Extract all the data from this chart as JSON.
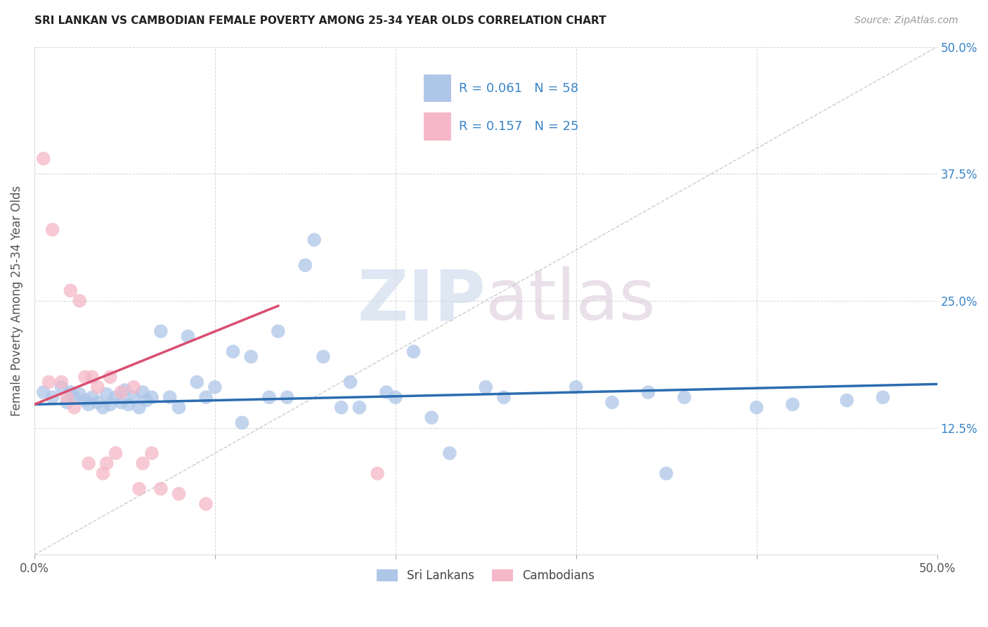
{
  "title": "SRI LANKAN VS CAMBODIAN FEMALE POVERTY AMONG 25-34 YEAR OLDS CORRELATION CHART",
  "source": "Source: ZipAtlas.com",
  "ylabel": "Female Poverty Among 25-34 Year Olds",
  "xlim": [
    0.0,
    0.5
  ],
  "ylim": [
    0.0,
    0.5
  ],
  "sri_lanka_R": 0.061,
  "sri_lanka_N": 58,
  "cambodia_R": 0.157,
  "cambodia_N": 25,
  "sri_lanka_color": "#aec6e8",
  "cambodia_color": "#f4b8c8",
  "sri_lanka_line_color": "#2b6cb0",
  "cambodia_line_color": "#d94f70",
  "diagonal_color": "#cccccc",
  "right_label_color": "#3a85c8",
  "watermark_zip_color": "#c8d8ea",
  "watermark_atlas_color": "#d8c8d8",
  "sri_lanka_x": [
    0.005,
    0.01,
    0.015,
    0.018,
    0.02,
    0.022,
    0.025,
    0.028,
    0.03,
    0.032,
    0.035,
    0.038,
    0.04,
    0.042,
    0.045,
    0.048,
    0.05,
    0.052,
    0.055,
    0.058,
    0.06,
    0.062,
    0.065,
    0.07,
    0.075,
    0.08,
    0.085,
    0.09,
    0.095,
    0.1,
    0.11,
    0.115,
    0.12,
    0.13,
    0.135,
    0.14,
    0.15,
    0.155,
    0.16,
    0.17,
    0.175,
    0.18,
    0.195,
    0.2,
    0.21,
    0.22,
    0.23,
    0.25,
    0.26,
    0.3,
    0.32,
    0.34,
    0.35,
    0.36,
    0.4,
    0.42,
    0.45,
    0.47
  ],
  "sri_lanka_y": [
    0.16,
    0.155,
    0.165,
    0.15,
    0.16,
    0.155,
    0.158,
    0.152,
    0.148,
    0.155,
    0.15,
    0.145,
    0.158,
    0.148,
    0.155,
    0.15,
    0.162,
    0.148,
    0.155,
    0.145,
    0.16,
    0.152,
    0.155,
    0.22,
    0.155,
    0.145,
    0.215,
    0.17,
    0.155,
    0.165,
    0.2,
    0.13,
    0.195,
    0.155,
    0.22,
    0.155,
    0.285,
    0.31,
    0.195,
    0.145,
    0.17,
    0.145,
    0.16,
    0.155,
    0.2,
    0.135,
    0.1,
    0.165,
    0.155,
    0.165,
    0.15,
    0.16,
    0.08,
    0.155,
    0.145,
    0.148,
    0.152,
    0.155
  ],
  "cambodia_x": [
    0.005,
    0.008,
    0.01,
    0.015,
    0.018,
    0.02,
    0.022,
    0.025,
    0.028,
    0.03,
    0.032,
    0.035,
    0.038,
    0.04,
    0.042,
    0.045,
    0.048,
    0.055,
    0.058,
    0.06,
    0.065,
    0.07,
    0.08,
    0.095,
    0.19
  ],
  "cambodia_y": [
    0.39,
    0.17,
    0.32,
    0.17,
    0.155,
    0.26,
    0.145,
    0.25,
    0.175,
    0.09,
    0.175,
    0.165,
    0.08,
    0.09,
    0.175,
    0.1,
    0.16,
    0.165,
    0.065,
    0.09,
    0.1,
    0.065,
    0.06,
    0.05,
    0.08
  ],
  "sri_lanka_trend": [
    0.148,
    0.168
  ],
  "cambodia_trend_x": [
    0.0,
    0.135
  ],
  "cambodia_trend_y": [
    0.148,
    0.245
  ]
}
